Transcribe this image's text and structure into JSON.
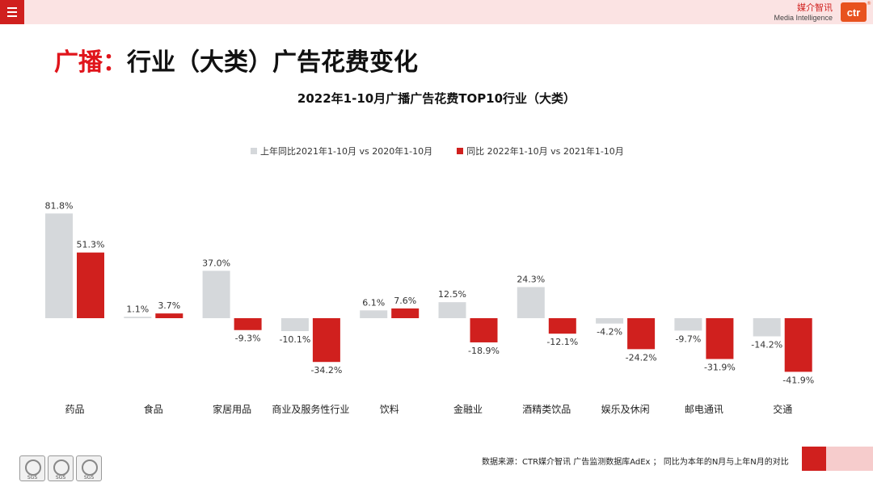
{
  "header": {
    "brand_cn": "媒介智讯",
    "brand_en": "Media Intelligence",
    "logo_text": "ctr",
    "logo_reg": "®"
  },
  "page_title": {
    "highlight": "广播：",
    "rest": "行业（大类）广告花费变化"
  },
  "chart_data": {
    "type": "bar",
    "title": "2022年1-10月广播广告花费TOP10行业（大类）",
    "categories": [
      "药品",
      "食品",
      "家居用品",
      "商业及服务性行业",
      "饮料",
      "金融业",
      "酒精类饮品",
      "娱乐及休闲",
      "邮电通讯",
      "交通"
    ],
    "series": [
      {
        "name": "上年同比2021年1-10月  vs  2020年1-10月",
        "color": "#d5d8db",
        "values": [
          81.8,
          1.1,
          37.0,
          -10.1,
          6.1,
          12.5,
          24.3,
          -4.2,
          -9.7,
          -14.2
        ],
        "labels": [
          "81.8%",
          "1.1%",
          "37.0%",
          "-10.1%",
          "6.1%",
          "12.5%",
          "24.3%",
          "-4.2%",
          "-9.7%",
          "-14.2%"
        ]
      },
      {
        "name": "同比 2022年1-10月  vs  2021年1-10月",
        "color": "#d0201e",
        "values": [
          51.3,
          3.7,
          -9.3,
          -34.2,
          7.6,
          -18.9,
          -12.1,
          -24.2,
          -31.9,
          -41.9
        ],
        "labels": [
          "51.3%",
          "3.7%",
          "-9.3%",
          "-34.2%",
          "7.6%",
          "-18.9%",
          "-12.1%",
          "-24.2%",
          "-31.9%",
          "-41.9%"
        ]
      }
    ],
    "ylim": [
      -45,
      90
    ],
    "xlabel": "",
    "ylabel": "",
    "grid": false,
    "legend": "top-center"
  },
  "footer": {
    "source": "数据来源：CTR媒介智讯 广告监测数据库AdEx  ；  同比为本年的N月与上年N月的对比",
    "cert_labels": [
      "SGS",
      "SGS",
      "SGS"
    ]
  }
}
